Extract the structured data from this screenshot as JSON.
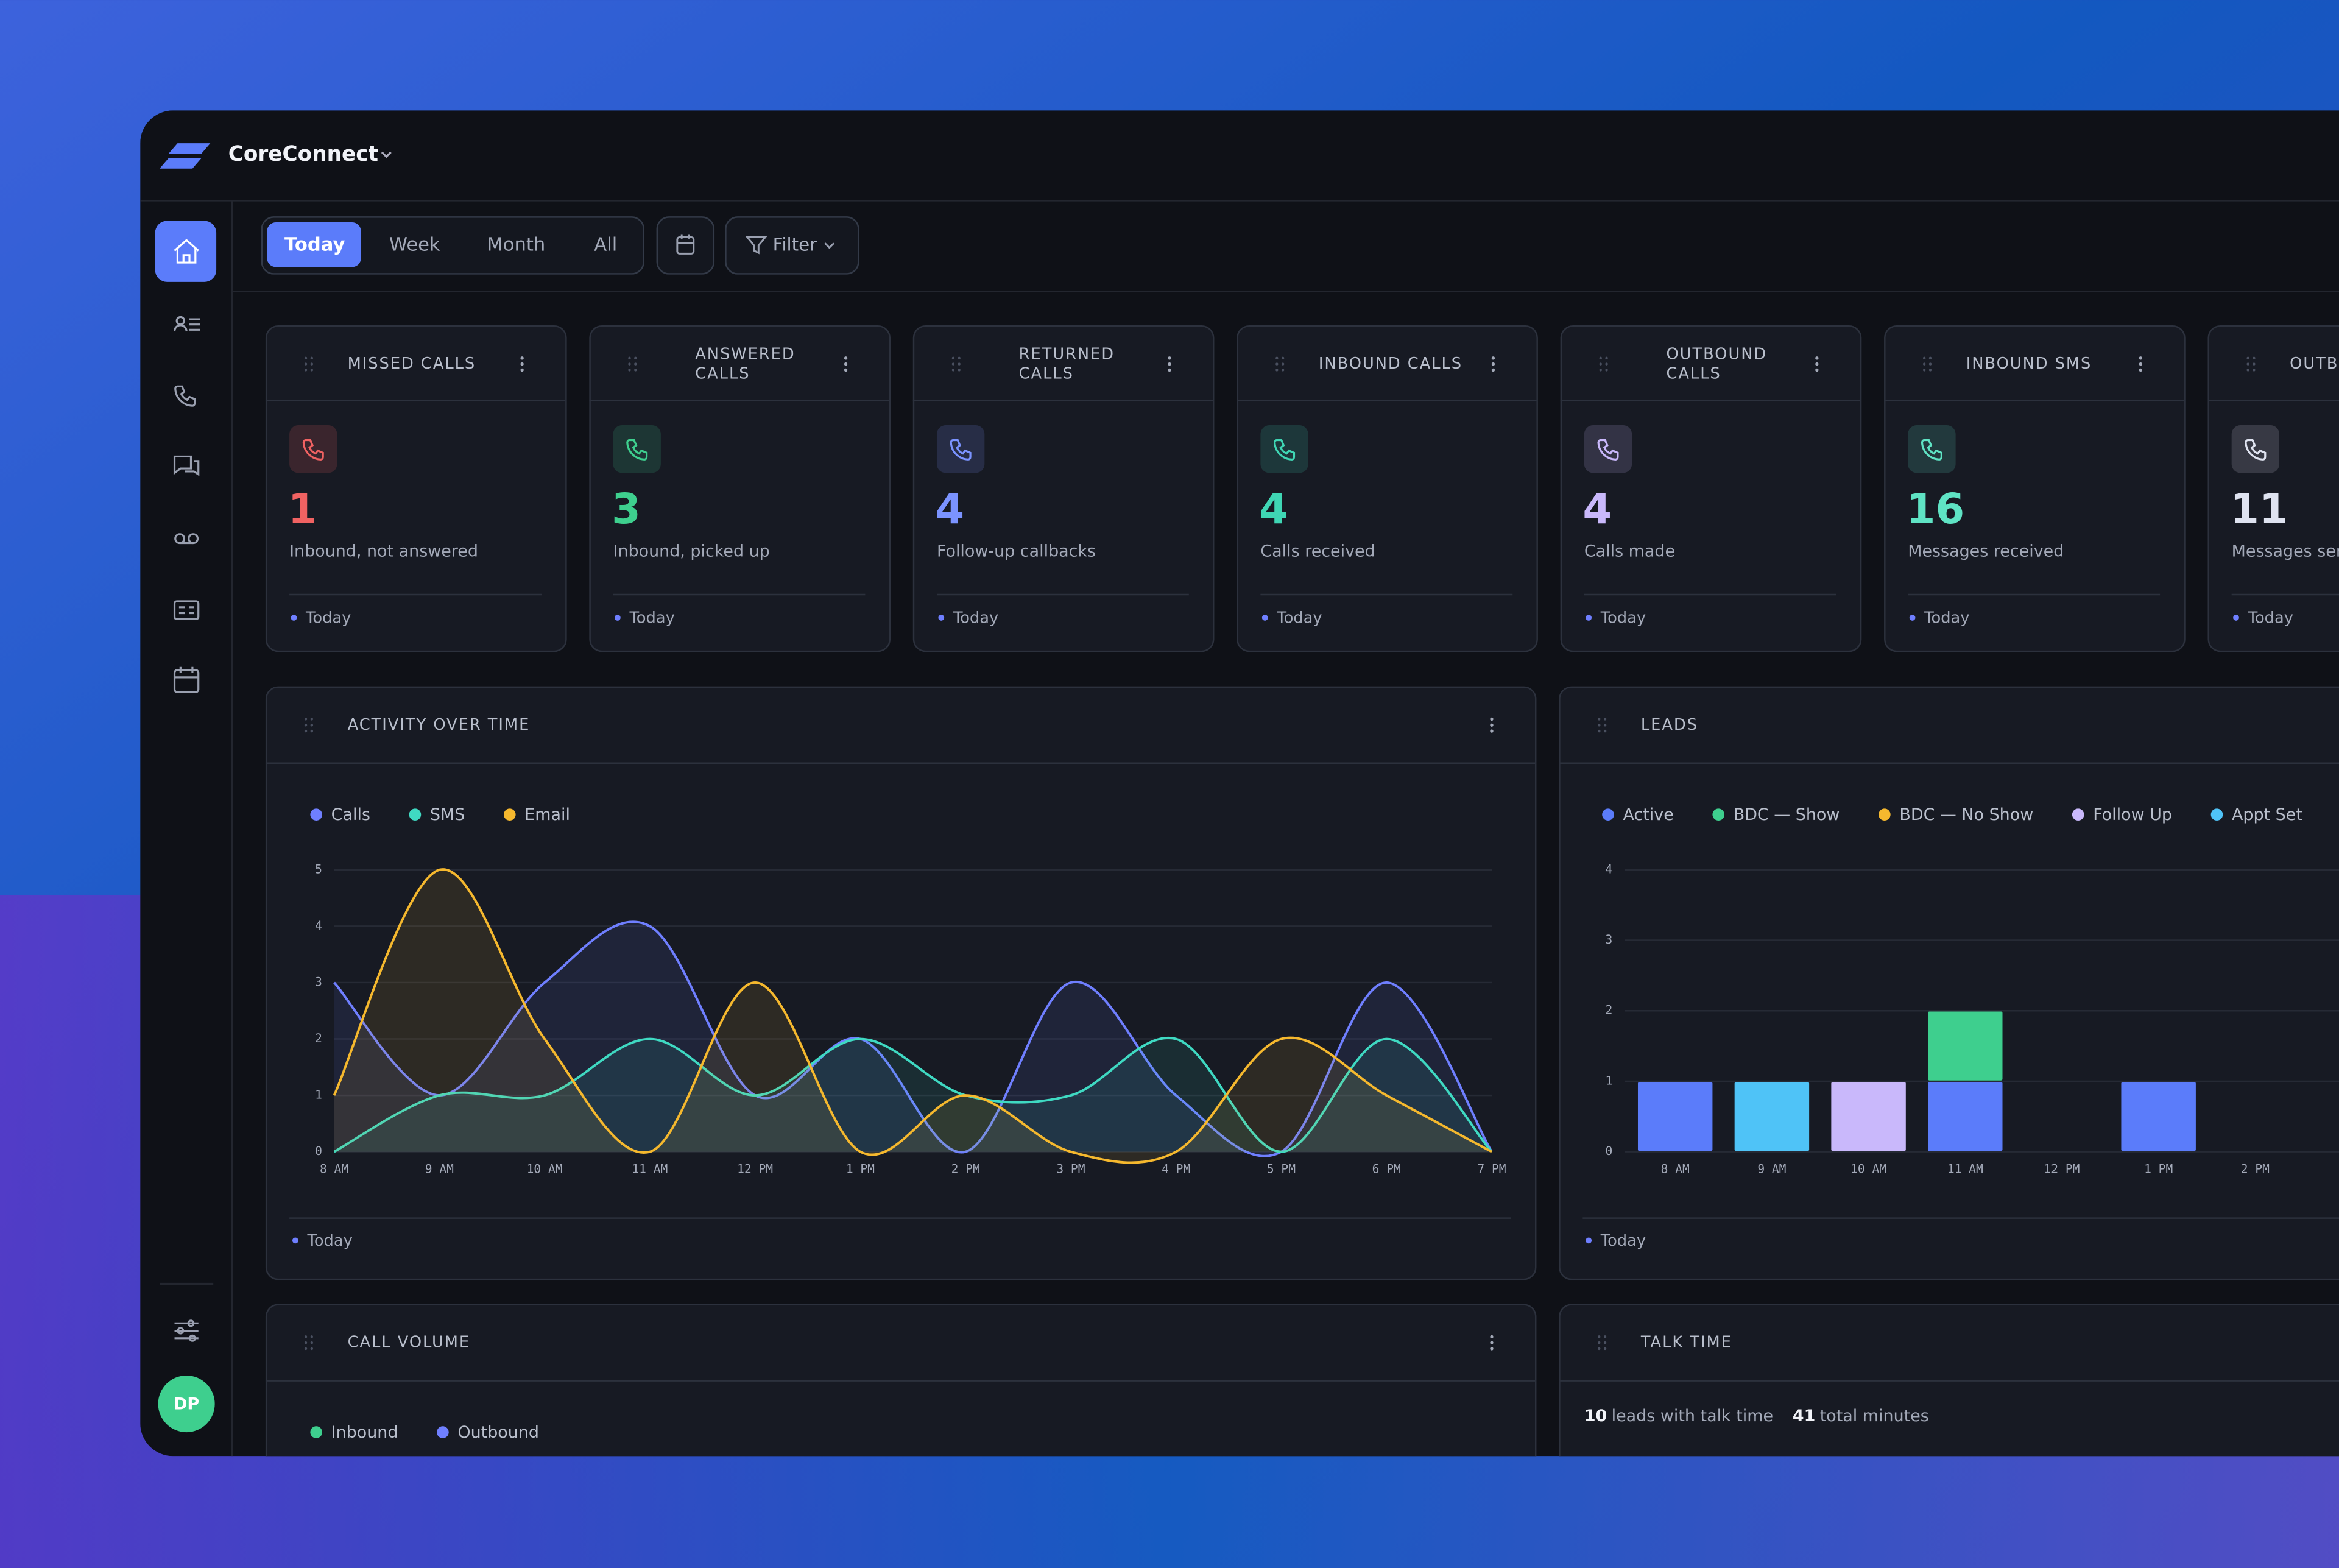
{
  "brand": "CoreConnect",
  "tabs": [
    "Today",
    "Week",
    "Month",
    "All"
  ],
  "active_tab": 0,
  "filter": "Filter",
  "avatar": "DP",
  "cards": [
    {
      "title": "MISSED CALLS",
      "value": 1,
      "caption": "Inbound, not answered",
      "period": "Today",
      "color": "#f06262"
    },
    {
      "title": "ANSWERED CALLS",
      "value": 3,
      "caption": "Inbound, picked up",
      "period": "Today",
      "color": "#3ecf8e"
    },
    {
      "title": "RETURNED CALLS",
      "value": 4,
      "caption": "Follow-up callbacks",
      "period": "Today",
      "color": "#7b93ff"
    },
    {
      "title": "INBOUND CALLS",
      "value": 4,
      "caption": "Calls received",
      "period": "Today",
      "color": "#3fd6b4"
    },
    {
      "title": "OUTBOUND CALLS",
      "value": 4,
      "caption": "Calls made",
      "period": "Today",
      "color": "#c9b8fb"
    },
    {
      "title": "INBOUND SMS",
      "value": 16,
      "caption": "Messages received",
      "period": "Today",
      "color": "#5fe3c4"
    },
    {
      "title": "OUTBOUND SMS",
      "value": 11,
      "caption": "Messages sent",
      "period": "Today",
      "color": "#dfe3f0"
    }
  ],
  "activity": {
    "type": "line",
    "title": "ACTIVITY OVER TIME",
    "categories": [
      "8 AM",
      "9 AM",
      "10 AM",
      "11 AM",
      "12 PM",
      "1 PM",
      "2 PM",
      "3 PM",
      "4 PM",
      "5 PM",
      "6 PM",
      "7 PM"
    ],
    "series": [
      {
        "name": "Calls",
        "color": "#6f7fff",
        "values": [
          3,
          1,
          3,
          4,
          1,
          2,
          0,
          3,
          1,
          0,
          3,
          0
        ]
      },
      {
        "name": "SMS",
        "color": "#3fd9c2",
        "values": [
          0,
          1,
          1,
          2,
          1,
          2,
          1,
          1,
          2,
          0,
          2,
          0
        ]
      },
      {
        "name": "Email",
        "color": "#f5b82e",
        "values": [
          1,
          5,
          2,
          0,
          3,
          0,
          1,
          0,
          0,
          2,
          1,
          0
        ]
      }
    ],
    "ylim": [
      0,
      5
    ],
    "yticks": [
      0,
      1,
      2,
      3,
      4,
      5
    ],
    "period": "Today"
  },
  "leads": {
    "type": "bar",
    "stacked": true,
    "title": "LEADS",
    "categories": [
      "8 AM",
      "9 AM",
      "10 AM",
      "11 AM",
      "12 PM",
      "1 PM",
      "2 PM"
    ],
    "series": [
      {
        "name": "Active",
        "color": "#5b7cfa",
        "values": [
          1,
          0,
          0,
          1,
          0,
          1,
          0
        ]
      },
      {
        "name": "BDC — Show",
        "color": "#3ecf8e",
        "values": [
          0,
          0,
          0,
          1,
          0,
          0,
          0
        ]
      },
      {
        "name": "BDC — No Show",
        "color": "#f5b82e",
        "values": [
          0,
          0,
          0,
          0,
          0,
          0,
          0
        ]
      },
      {
        "name": "Follow Up",
        "color": "#c9b8fb",
        "values": [
          0,
          0,
          1,
          0,
          0,
          0,
          0
        ]
      },
      {
        "name": "Appt Set",
        "color": "#4fc3f7",
        "values": [
          0,
          1,
          0,
          0,
          0,
          0,
          0
        ]
      }
    ],
    "ylim": [
      0,
      4
    ],
    "yticks": [
      0,
      1,
      2,
      3,
      4
    ],
    "period": "Today"
  },
  "call_volume": {
    "title": "CALL VOLUME",
    "legend": [
      {
        "name": "Inbound",
        "color": "#3ecf8e"
      },
      {
        "name": "Outbound",
        "color": "#6f7fff"
      }
    ]
  },
  "talk_time": {
    "title": "TALK TIME",
    "leads": 10,
    "leads_text": "leads with talk time",
    "minutes": 41,
    "minutes_text": "total minutes"
  }
}
